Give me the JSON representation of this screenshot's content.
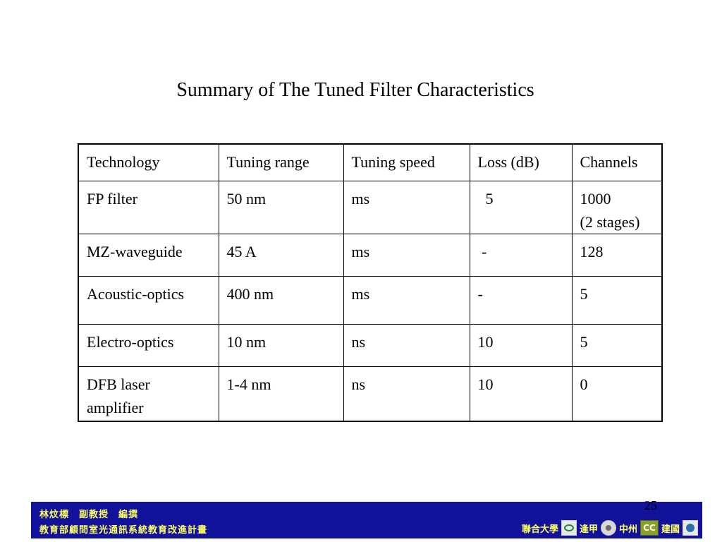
{
  "slide": {
    "title": "Summary of The Tuned Filter Characteristics",
    "page_number": "25"
  },
  "table": {
    "headers": [
      "Technology",
      "Tuning range",
      "Tuning speed",
      "Loss (dB)",
      "Channels"
    ],
    "rows": [
      [
        "FP filter",
        "50 nm",
        "ms",
        "  5",
        "1000\n(2 stages)"
      ],
      [
        "MZ-waveguide",
        "45 A",
        "ms",
        " -",
        "128"
      ],
      [
        "Acoustic-optics",
        "400 nm",
        "ms",
        "-",
        "5"
      ],
      [
        "Electro-optics",
        "10 nm",
        "ns",
        "10",
        "5"
      ],
      [
        "DFB laser\namplifier",
        "1-4 nm",
        "ns",
        "10",
        "0"
      ]
    ]
  },
  "footer": {
    "author_line": "林炆標　副教授　編撰",
    "program_line": "教育部顧問室光通訊系統教育改進計畫",
    "partners": [
      "聯合大學",
      "逢甲",
      "中州",
      "建國"
    ],
    "cc_logo_text": "CC"
  }
}
